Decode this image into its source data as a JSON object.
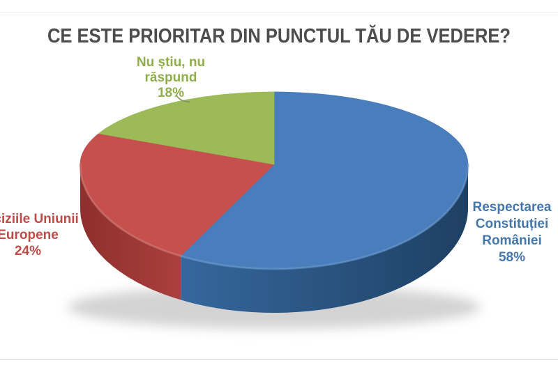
{
  "chart_data": {
    "type": "pie",
    "style": "3d",
    "title": "CE ESTE PRIORITAR DIN PUNCTUL TĂU DE VEDERE?",
    "title_color": "#4d4d4d",
    "start_angle_deg": 90,
    "direction": "clockwise",
    "unit": "%",
    "legend": "none",
    "slices": [
      {
        "name": "Respectarea Constituției României",
        "value": 58,
        "label_lines": [
          "Respectarea",
          "Constituției",
          "României",
          "58%"
        ],
        "colors": {
          "top": "#4a7dbb",
          "side_light": "#36679d",
          "side_dark": "#1e4063",
          "rim": "#6e9dcf",
          "label": "#4577ab"
        }
      },
      {
        "name": "Deciziile Uniunii Europene",
        "value": 24,
        "label_lines": [
          "Deciziile Uniunii",
          "Europene",
          "24%"
        ],
        "colors": {
          "top": "#c5504d",
          "side_light": "#aa403d",
          "side_dark": "#8e2f2d",
          "rim": "#d0807c",
          "label": "#be4b48"
        }
      },
      {
        "name": "Nu știu, nu răspund",
        "value": 18,
        "label_lines": [
          "Nu știu, nu",
          "răspund",
          "18%"
        ],
        "colors": {
          "top": "#9cba58",
          "side_light": "#9cba58",
          "side_dark": "#85a348",
          "rim": "#b5cd7e",
          "label": "#8fae4b"
        }
      }
    ]
  }
}
